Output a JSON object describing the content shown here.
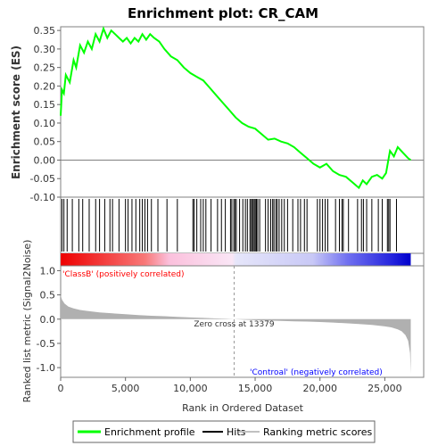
{
  "chart_data": {
    "type": "line",
    "title": "Enrichment plot: CR_CAM",
    "top_panel": {
      "ylabel": "Enrichment score (ES)",
      "ylim": [
        -0.1,
        0.36
      ],
      "yticks": [
        "0.35",
        "0.30",
        "0.25",
        "0.20",
        "0.15",
        "0.10",
        "0.05",
        "0.00",
        "-0.05",
        "-0.10"
      ],
      "ytick_values": [
        0.35,
        0.3,
        0.25,
        0.2,
        0.15,
        0.1,
        0.05,
        0.0,
        -0.05,
        -0.1
      ],
      "series": [
        {
          "name": "Enrichment profile",
          "color": "#00ff00",
          "x": [
            0,
            100,
            250,
            400,
            700,
            1000,
            1200,
            1500,
            1800,
            2100,
            2400,
            2700,
            3000,
            3300,
            3600,
            3900,
            4200,
            4500,
            4800,
            5100,
            5400,
            5700,
            6000,
            6300,
            6600,
            6900,
            7200,
            7600,
            8000,
            8500,
            9000,
            9500,
            10000,
            10500,
            11000,
            11500,
            12000,
            12500,
            13000,
            13500,
            14000,
            14500,
            15000,
            15500,
            16000,
            16500,
            17000,
            17500,
            18000,
            18500,
            19000,
            19500,
            20000,
            20500,
            21000,
            21500,
            22000,
            22500,
            23000,
            23300,
            23600,
            24000,
            24400,
            24800,
            25100,
            25400,
            25700,
            26000,
            26400,
            26800,
            27000
          ],
          "y": [
            0.12,
            0.19,
            0.18,
            0.23,
            0.21,
            0.27,
            0.25,
            0.31,
            0.29,
            0.32,
            0.3,
            0.34,
            0.32,
            0.355,
            0.33,
            0.35,
            0.34,
            0.33,
            0.32,
            0.33,
            0.315,
            0.33,
            0.32,
            0.34,
            0.325,
            0.34,
            0.33,
            0.32,
            0.3,
            0.28,
            0.27,
            0.25,
            0.235,
            0.225,
            0.215,
            0.195,
            0.175,
            0.155,
            0.135,
            0.115,
            0.1,
            0.09,
            0.085,
            0.07,
            0.055,
            0.058,
            0.05,
            0.045,
            0.035,
            0.02,
            0.005,
            -0.01,
            -0.02,
            -0.01,
            -0.03,
            -0.04,
            -0.045,
            -0.06,
            -0.075,
            -0.055,
            -0.065,
            -0.045,
            -0.04,
            -0.05,
            -0.035,
            0.025,
            0.01,
            0.035,
            0.02,
            0.005,
            0.0
          ]
        }
      ]
    },
    "hits_panel": {
      "hit_positions": [
        100,
        250,
        500,
        900,
        1400,
        1700,
        2200,
        2700,
        3000,
        3400,
        3800,
        4000,
        4500,
        5000,
        5200,
        5500,
        5800,
        6100,
        6300,
        6500,
        6700,
        7000,
        7500,
        8200,
        9000,
        10200,
        10300,
        10500,
        10800,
        11000,
        11200,
        11600,
        12100,
        12400,
        12700,
        13100,
        13200,
        13350,
        13450,
        13550,
        13800,
        14050,
        14250,
        14400,
        14600,
        14700,
        14800,
        14850,
        14950,
        15050,
        15100,
        15200,
        15350,
        15800,
        16000,
        16200,
        16350,
        16450,
        16600,
        16700,
        16850,
        17050,
        17250,
        17500,
        17900,
        18300,
        18500,
        18800,
        19000,
        19800,
        20000,
        20200,
        20400,
        20600,
        21200,
        21500,
        21700,
        21800,
        22200,
        22900,
        23200,
        23350,
        23600,
        24000,
        24500,
        24800,
        25200,
        25300,
        25400,
        25900
      ]
    },
    "bottom_panel": {
      "type": "area",
      "xlabel": "Rank in Ordered Dataset",
      "ylabel": "Ranked list metric (Signal2Noise)",
      "ylim": [
        -1.2,
        1.1
      ],
      "yticks": [
        "1.0",
        "0.5",
        "0.0",
        "-0.5",
        "-1.0"
      ],
      "ytick_values": [
        1.0,
        0.5,
        0.0,
        -0.5,
        -1.0
      ],
      "metric_x": [
        0,
        100,
        300,
        600,
        1000,
        1500,
        2000,
        3000,
        4000,
        5000,
        6000,
        7000,
        8000,
        9000,
        10000,
        11000,
        12000,
        13000,
        13379,
        14000,
        15000,
        16000,
        17000,
        18000,
        19000,
        20000,
        21000,
        22000,
        23000,
        24000,
        25000,
        25500,
        26000,
        26300,
        26600,
        26800,
        26950,
        27000
      ],
      "metric_y": [
        0.5,
        0.4,
        0.32,
        0.26,
        0.22,
        0.19,
        0.17,
        0.14,
        0.12,
        0.1,
        0.085,
        0.07,
        0.06,
        0.045,
        0.035,
        0.025,
        0.015,
        0.005,
        0.0,
        -0.01,
        -0.02,
        -0.03,
        -0.035,
        -0.045,
        -0.05,
        -0.06,
        -0.07,
        -0.085,
        -0.1,
        -0.12,
        -0.15,
        -0.17,
        -0.21,
        -0.25,
        -0.33,
        -0.45,
        -0.7,
        -1.12
      ],
      "zero_cross_label": "Zero cross at 13379",
      "zero_cross_x": 13379,
      "positive_label": "'ClassB' (positively correlated)",
      "negative_label": "'Controal' (negatively correlated)"
    },
    "x_axis": {
      "xlim": [
        0,
        28000
      ],
      "xticks": [
        "0",
        "5,000",
        "10,000",
        "15,000",
        "20,000",
        "25,000"
      ],
      "xtick_values": [
        0,
        5000,
        10000,
        15000,
        20000,
        25000
      ]
    },
    "legend": {
      "placement": "bottom",
      "items": [
        {
          "label": "Enrichment profile",
          "color": "#00ff00"
        },
        {
          "label": "Hits",
          "color": "#000000"
        },
        {
          "label": "Ranking metric scores",
          "color": "#c0c0c0"
        }
      ]
    },
    "colors": {
      "profile": "#00ff00",
      "positive_label": "#ff0000",
      "negative_label": "#0000ff",
      "metric_fill": "#b0b0b0",
      "hit_tick": "#000000"
    }
  }
}
